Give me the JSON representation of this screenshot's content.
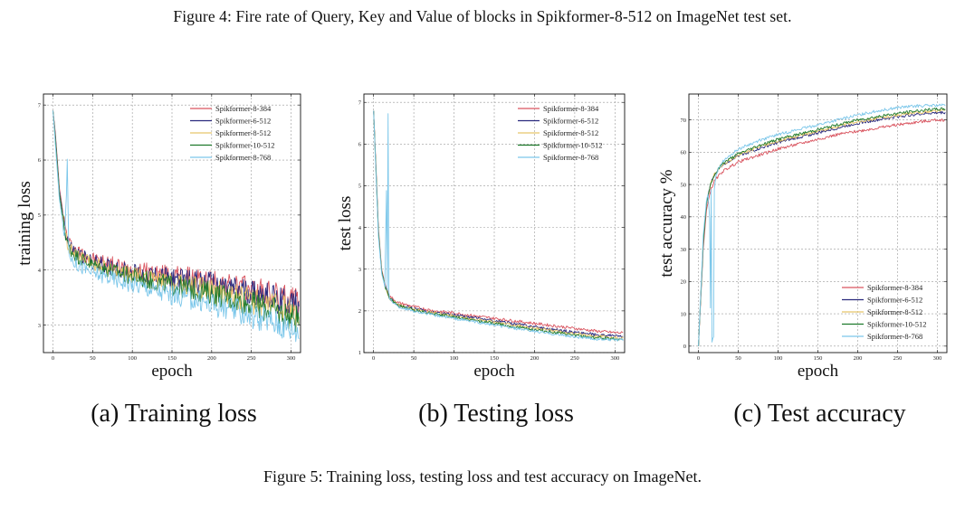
{
  "figure4_caption": "Figure 4: Fire rate of Query, Key and Value of blocks in Spikformer-8-512 on ImageNet test set.",
  "figure5_caption": "Figure 5: Training loss, testing loss and test accuracy on ImageNet.",
  "colors": {
    "Spikformer-8-384": "#d9545f",
    "Spikformer-6-512": "#2a2a7e",
    "Spikformer-8-512": "#e8c56a",
    "Spikformer-10-512": "#1f7a2c",
    "Spikformer-8-768": "#7cc7ea"
  },
  "chart_data": [
    {
      "type": "line",
      "id": "training-loss",
      "caption": "(a) Training loss",
      "xlabel": "epoch",
      "ylabel": "training loss",
      "xlim": [
        -12,
        312
      ],
      "ylim": [
        2.5,
        7.2
      ],
      "xticks": [
        0,
        50,
        100,
        150,
        200,
        250,
        300
      ],
      "yticks": [
        3,
        4,
        5,
        6,
        7
      ],
      "grid": true,
      "legend_position": "top-right",
      "series": [
        {
          "name": "Spikformer-8-384",
          "x": [
            0,
            3,
            8,
            15,
            20,
            30,
            50,
            75,
            100,
            125,
            150,
            175,
            200,
            225,
            250,
            275,
            300,
            310
          ],
          "values": [
            6.9,
            6.5,
            5.5,
            4.8,
            4.5,
            4.35,
            4.2,
            4.1,
            4.0,
            3.95,
            3.9,
            3.85,
            3.8,
            3.7,
            3.65,
            3.55,
            3.45,
            3.4
          ]
        },
        {
          "name": "Spikformer-6-512",
          "x": [
            0,
            3,
            8,
            15,
            20,
            30,
            50,
            75,
            100,
            125,
            150,
            175,
            200,
            225,
            250,
            275,
            300,
            310
          ],
          "values": [
            6.9,
            6.45,
            5.45,
            4.75,
            4.45,
            4.3,
            4.15,
            4.05,
            3.95,
            3.9,
            3.85,
            3.8,
            3.75,
            3.65,
            3.6,
            3.5,
            3.4,
            3.35
          ]
        },
        {
          "name": "Spikformer-8-512",
          "x": [
            0,
            3,
            8,
            15,
            20,
            30,
            50,
            75,
            100,
            125,
            150,
            175,
            200,
            225,
            250,
            275,
            300,
            310
          ],
          "values": [
            6.9,
            6.4,
            5.4,
            4.7,
            4.4,
            4.25,
            4.1,
            4.0,
            3.9,
            3.82,
            3.75,
            3.7,
            3.62,
            3.55,
            3.45,
            3.35,
            3.25,
            3.2
          ]
        },
        {
          "name": "Spikformer-10-512",
          "x": [
            0,
            3,
            8,
            15,
            20,
            30,
            50,
            75,
            100,
            125,
            150,
            175,
            200,
            225,
            250,
            275,
            300,
            310
          ],
          "values": [
            6.9,
            6.4,
            5.4,
            4.7,
            4.4,
            4.25,
            4.1,
            3.98,
            3.88,
            3.8,
            3.72,
            3.65,
            3.58,
            3.48,
            3.38,
            3.28,
            3.15,
            3.1
          ]
        },
        {
          "name": "Spikformer-8-768",
          "x": [
            0,
            3,
            8,
            15,
            18,
            20,
            30,
            50,
            75,
            100,
            125,
            150,
            175,
            200,
            225,
            250,
            275,
            300,
            310
          ],
          "values": [
            6.9,
            6.3,
            5.3,
            4.6,
            5.9,
            4.3,
            4.1,
            3.95,
            3.85,
            3.75,
            3.65,
            3.55,
            3.48,
            3.38,
            3.28,
            3.18,
            3.08,
            2.95,
            2.9
          ]
        }
      ]
    },
    {
      "type": "line",
      "id": "testing-loss",
      "caption": "(b) Testing loss",
      "xlabel": "epoch",
      "ylabel": "test loss",
      "xlim": [
        -12,
        312
      ],
      "ylim": [
        1.0,
        7.2
      ],
      "xticks": [
        0,
        50,
        100,
        150,
        200,
        250,
        300
      ],
      "yticks": [
        1,
        2,
        3,
        4,
        5,
        6,
        7
      ],
      "grid": true,
      "legend_position": "top-right",
      "series": [
        {
          "name": "Spikformer-8-384",
          "x": [
            0,
            3,
            6,
            10,
            15,
            20,
            30,
            50,
            75,
            100,
            125,
            150,
            175,
            200,
            225,
            250,
            275,
            300,
            310
          ],
          "values": [
            6.8,
            5.5,
            4.0,
            3.0,
            2.6,
            2.35,
            2.2,
            2.1,
            2.0,
            1.95,
            1.88,
            1.82,
            1.76,
            1.7,
            1.64,
            1.58,
            1.52,
            1.48,
            1.47
          ]
        },
        {
          "name": "Spikformer-6-512",
          "x": [
            0,
            3,
            6,
            10,
            15,
            20,
            30,
            50,
            75,
            100,
            125,
            150,
            175,
            200,
            225,
            250,
            275,
            300,
            310
          ],
          "values": [
            6.8,
            5.4,
            3.9,
            2.95,
            2.55,
            2.3,
            2.15,
            2.05,
            1.96,
            1.9,
            1.83,
            1.76,
            1.69,
            1.62,
            1.55,
            1.49,
            1.43,
            1.4,
            1.39
          ]
        },
        {
          "name": "Spikformer-8-512",
          "x": [
            0,
            3,
            6,
            10,
            15,
            20,
            30,
            50,
            75,
            100,
            125,
            150,
            175,
            200,
            225,
            250,
            275,
            300,
            310
          ],
          "values": [
            6.8,
            5.4,
            3.9,
            2.95,
            2.55,
            2.3,
            2.15,
            2.04,
            1.95,
            1.88,
            1.8,
            1.73,
            1.66,
            1.59,
            1.52,
            1.45,
            1.4,
            1.36,
            1.35
          ]
        },
        {
          "name": "Spikformer-10-512",
          "x": [
            0,
            3,
            6,
            10,
            15,
            20,
            30,
            50,
            75,
            100,
            125,
            150,
            175,
            200,
            225,
            250,
            275,
            300,
            310
          ],
          "values": [
            6.8,
            5.4,
            3.9,
            2.95,
            2.55,
            2.3,
            2.13,
            2.02,
            1.93,
            1.85,
            1.77,
            1.7,
            1.62,
            1.55,
            1.48,
            1.41,
            1.36,
            1.33,
            1.32
          ]
        },
        {
          "name": "Spikformer-8-768",
          "x": [
            0,
            3,
            6,
            10,
            14,
            16,
            17,
            18,
            19,
            20,
            30,
            50,
            75,
            100,
            125,
            150,
            175,
            200,
            225,
            250,
            275,
            300,
            310
          ],
          "values": [
            6.8,
            5.3,
            3.8,
            2.9,
            2.6,
            4.9,
            2.5,
            6.7,
            2.45,
            2.3,
            2.1,
            2.0,
            1.9,
            1.82,
            1.74,
            1.66,
            1.58,
            1.51,
            1.44,
            1.38,
            1.33,
            1.3,
            1.3
          ]
        }
      ]
    },
    {
      "type": "line",
      "id": "test-accuracy",
      "caption": "(c) Test accuracy",
      "xlabel": "epoch",
      "ylabel": "test accuracy %",
      "xlim": [
        -12,
        312
      ],
      "ylim": [
        -2,
        78
      ],
      "xticks": [
        0,
        50,
        100,
        150,
        200,
        250,
        300
      ],
      "yticks": [
        0,
        10,
        20,
        30,
        40,
        50,
        60,
        70
      ],
      "grid": true,
      "legend_position": "bottom-right",
      "series": [
        {
          "name": "Spikformer-8-384",
          "x": [
            0,
            3,
            6,
            10,
            15,
            20,
            30,
            50,
            75,
            100,
            125,
            150,
            175,
            200,
            225,
            250,
            275,
            300,
            310
          ],
          "values": [
            0,
            15,
            30,
            42,
            48,
            51,
            54,
            57,
            59,
            61,
            62.5,
            64,
            65.5,
            66.5,
            67.5,
            68.5,
            69.3,
            70,
            70
          ]
        },
        {
          "name": "Spikformer-6-512",
          "x": [
            0,
            3,
            6,
            10,
            15,
            20,
            30,
            50,
            75,
            100,
            125,
            150,
            175,
            200,
            225,
            250,
            275,
            300,
            310
          ],
          "values": [
            0,
            16,
            32,
            44,
            50,
            53,
            56,
            59,
            61,
            63,
            64.5,
            66,
            67.5,
            69,
            70,
            71,
            71.8,
            72.2,
            72.3
          ]
        },
        {
          "name": "Spikformer-8-512",
          "x": [
            0,
            3,
            6,
            10,
            15,
            20,
            30,
            50,
            75,
            100,
            125,
            150,
            175,
            200,
            225,
            250,
            275,
            300,
            310
          ],
          "values": [
            0,
            16,
            32,
            44,
            50,
            53,
            56,
            59,
            61.5,
            63.5,
            65,
            66.5,
            68,
            69.5,
            70.5,
            71.5,
            72.2,
            72.8,
            73
          ]
        },
        {
          "name": "Spikformer-10-512",
          "x": [
            0,
            3,
            6,
            10,
            15,
            20,
            30,
            50,
            75,
            100,
            125,
            150,
            175,
            200,
            225,
            250,
            275,
            300,
            310
          ],
          "values": [
            0,
            16,
            32,
            44,
            50,
            53,
            56.5,
            59.5,
            62,
            64,
            65.5,
            67,
            68.5,
            70,
            71,
            72,
            72.8,
            73.3,
            73.4
          ]
        },
        {
          "name": "Spikformer-8-768",
          "x": [
            0,
            3,
            6,
            10,
            12,
            14,
            15,
            16,
            17,
            18,
            19,
            20,
            22,
            30,
            50,
            75,
            100,
            125,
            150,
            175,
            200,
            225,
            250,
            275,
            300,
            310
          ],
          "values": [
            0,
            17,
            34,
            45,
            47,
            40,
            12,
            48,
            1,
            2,
            3,
            49,
            53,
            57,
            61,
            63.5,
            65.5,
            67,
            68.5,
            70,
            71.5,
            72.8,
            73.8,
            74.3,
            74.5,
            74.5
          ]
        }
      ]
    }
  ]
}
